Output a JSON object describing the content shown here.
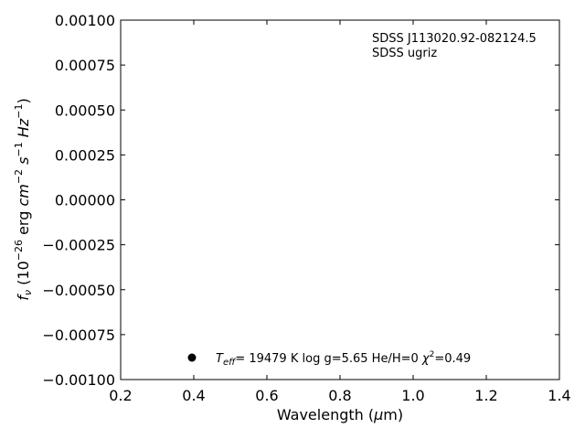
{
  "chart_data": {
    "type": "scatter",
    "xlabel_prefix": "Wavelength (",
    "xlabel_unit": "μ",
    "xlabel_suffix": "m)",
    "ylabel": {
      "f": "f",
      "nu": "ν",
      "open": " (10",
      "exp": "−26",
      "erg": " erg ",
      "cm": "cm",
      "cm_exp": "−2",
      "s": "s",
      "s_exp": "−1",
      "hz": "Hz",
      "hz_exp": "−1",
      "close": ")"
    },
    "xlim": [
      0.2,
      1.4
    ],
    "ylim": [
      -0.001,
      0.001
    ],
    "x_ticks": [
      "0.2",
      "0.4",
      "0.6",
      "0.8",
      "1.0",
      "1.2",
      "1.4"
    ],
    "y_ticks": [
      "0.00100",
      "0.00075",
      "0.00050",
      "0.00025",
      "0.00000",
      "−0.00025",
      "−0.00050",
      "−0.00075",
      "−0.00100"
    ],
    "annotation_lines": [
      "SDSS J113020.92-082124.5",
      "SDSS ugriz"
    ],
    "legend": {
      "marker_color": "#000000",
      "T": "T",
      "T_sub": "eff",
      "T_rest": "= 19479 K  log g=5.65  He/H=0  ",
      "chi": "χ",
      "chi_exp": "2",
      "chi_rest": "=0.49"
    },
    "grid": false
  }
}
